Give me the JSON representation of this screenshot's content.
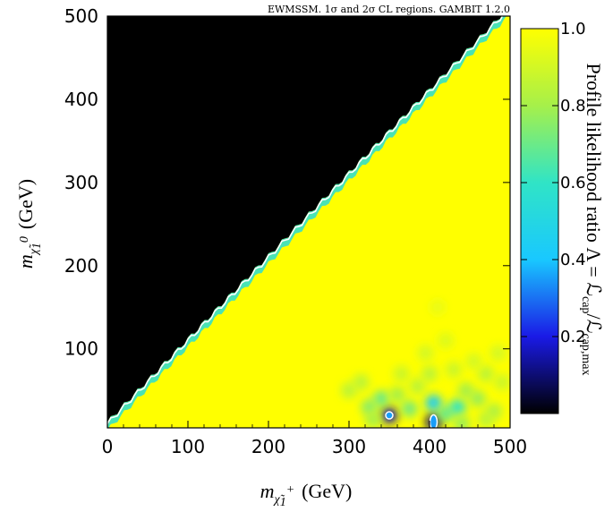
{
  "chart_data": {
    "type": "heatmap",
    "title": "EWMSSM. 1σ and 2σ CL regions. GAMBIT 1.2.0",
    "xlabel": {
      "symbol": "m",
      "sub": "χ̃",
      "subsub": "1",
      "sup": "+",
      "unit": "(GeV)"
    },
    "ylabel": {
      "symbol": "m",
      "sub": "χ̃",
      "subsub": "1",
      "sup": "0",
      "unit": "(GeV)"
    },
    "xlim": [
      0,
      500
    ],
    "ylim": [
      5,
      500
    ],
    "x_ticks": [
      "0",
      "100",
      "200",
      "300",
      "400",
      "500"
    ],
    "y_ticks": [
      "100",
      "200",
      "300",
      "400",
      "500"
    ],
    "x_tick_values": [
      0,
      100,
      200,
      300,
      400,
      500
    ],
    "y_tick_values": [
      100,
      200,
      300,
      400,
      500
    ],
    "colorbar": {
      "label": "Profile likelihood ratio Λ = ℒcap/ℒcap,max",
      "label_main": "Profile likelihood ratio Λ = ℒ",
      "label_sub1": "cap",
      "label_mid": "/ℒ",
      "label_sub2": "cap,max",
      "range": [
        0,
        1
      ],
      "ticks": [
        "0.2",
        "0.4",
        "0.6",
        "0.8",
        "1.0"
      ],
      "tick_values": [
        0.2,
        0.4,
        0.6,
        0.8,
        1.0
      ],
      "colors": [
        "#000000",
        "#1a1ae6",
        "#19c8ff",
        "#30e4c6",
        "#a6f04a",
        "#ffff00"
      ]
    },
    "regions": {
      "excluded_fill": "#000000",
      "allowed_fill": "#ffff00",
      "boundary": "m_chi10 = m_chi1+",
      "contour_color": "#ffffff"
    },
    "spots": [
      {
        "x": 350,
        "y": 20,
        "value": 0.15
      },
      {
        "x": 405,
        "y": 12,
        "value": 0.1
      },
      {
        "x": 405,
        "y": 35,
        "value": 0.45
      },
      {
        "x": 340,
        "y": 40,
        "value": 0.7
      },
      {
        "x": 325,
        "y": 30,
        "value": 0.75
      },
      {
        "x": 300,
        "y": 50,
        "value": 0.85
      },
      {
        "x": 315,
        "y": 60,
        "value": 0.85
      },
      {
        "x": 360,
        "y": 45,
        "value": 0.8
      },
      {
        "x": 375,
        "y": 28,
        "value": 0.72
      },
      {
        "x": 385,
        "y": 55,
        "value": 0.85
      },
      {
        "x": 420,
        "y": 22,
        "value": 0.7
      },
      {
        "x": 435,
        "y": 30,
        "value": 0.6
      },
      {
        "x": 445,
        "y": 50,
        "value": 0.8
      },
      {
        "x": 460,
        "y": 40,
        "value": 0.78
      },
      {
        "x": 470,
        "y": 70,
        "value": 0.85
      },
      {
        "x": 480,
        "y": 25,
        "value": 0.82
      },
      {
        "x": 490,
        "y": 60,
        "value": 0.88
      },
      {
        "x": 455,
        "y": 85,
        "value": 0.9
      },
      {
        "x": 430,
        "y": 75,
        "value": 0.88
      },
      {
        "x": 400,
        "y": 70,
        "value": 0.85
      },
      {
        "x": 395,
        "y": 95,
        "value": 0.9
      },
      {
        "x": 420,
        "y": 110,
        "value": 0.92
      },
      {
        "x": 485,
        "y": 95,
        "value": 0.9
      },
      {
        "x": 410,
        "y": 150,
        "value": 0.95
      },
      {
        "x": 330,
        "y": 15,
        "value": 0.8
      },
      {
        "x": 440,
        "y": 10,
        "value": 0.78
      },
      {
        "x": 365,
        "y": 70,
        "value": 0.88
      },
      {
        "x": 470,
        "y": 15,
        "value": 0.85
      }
    ]
  }
}
